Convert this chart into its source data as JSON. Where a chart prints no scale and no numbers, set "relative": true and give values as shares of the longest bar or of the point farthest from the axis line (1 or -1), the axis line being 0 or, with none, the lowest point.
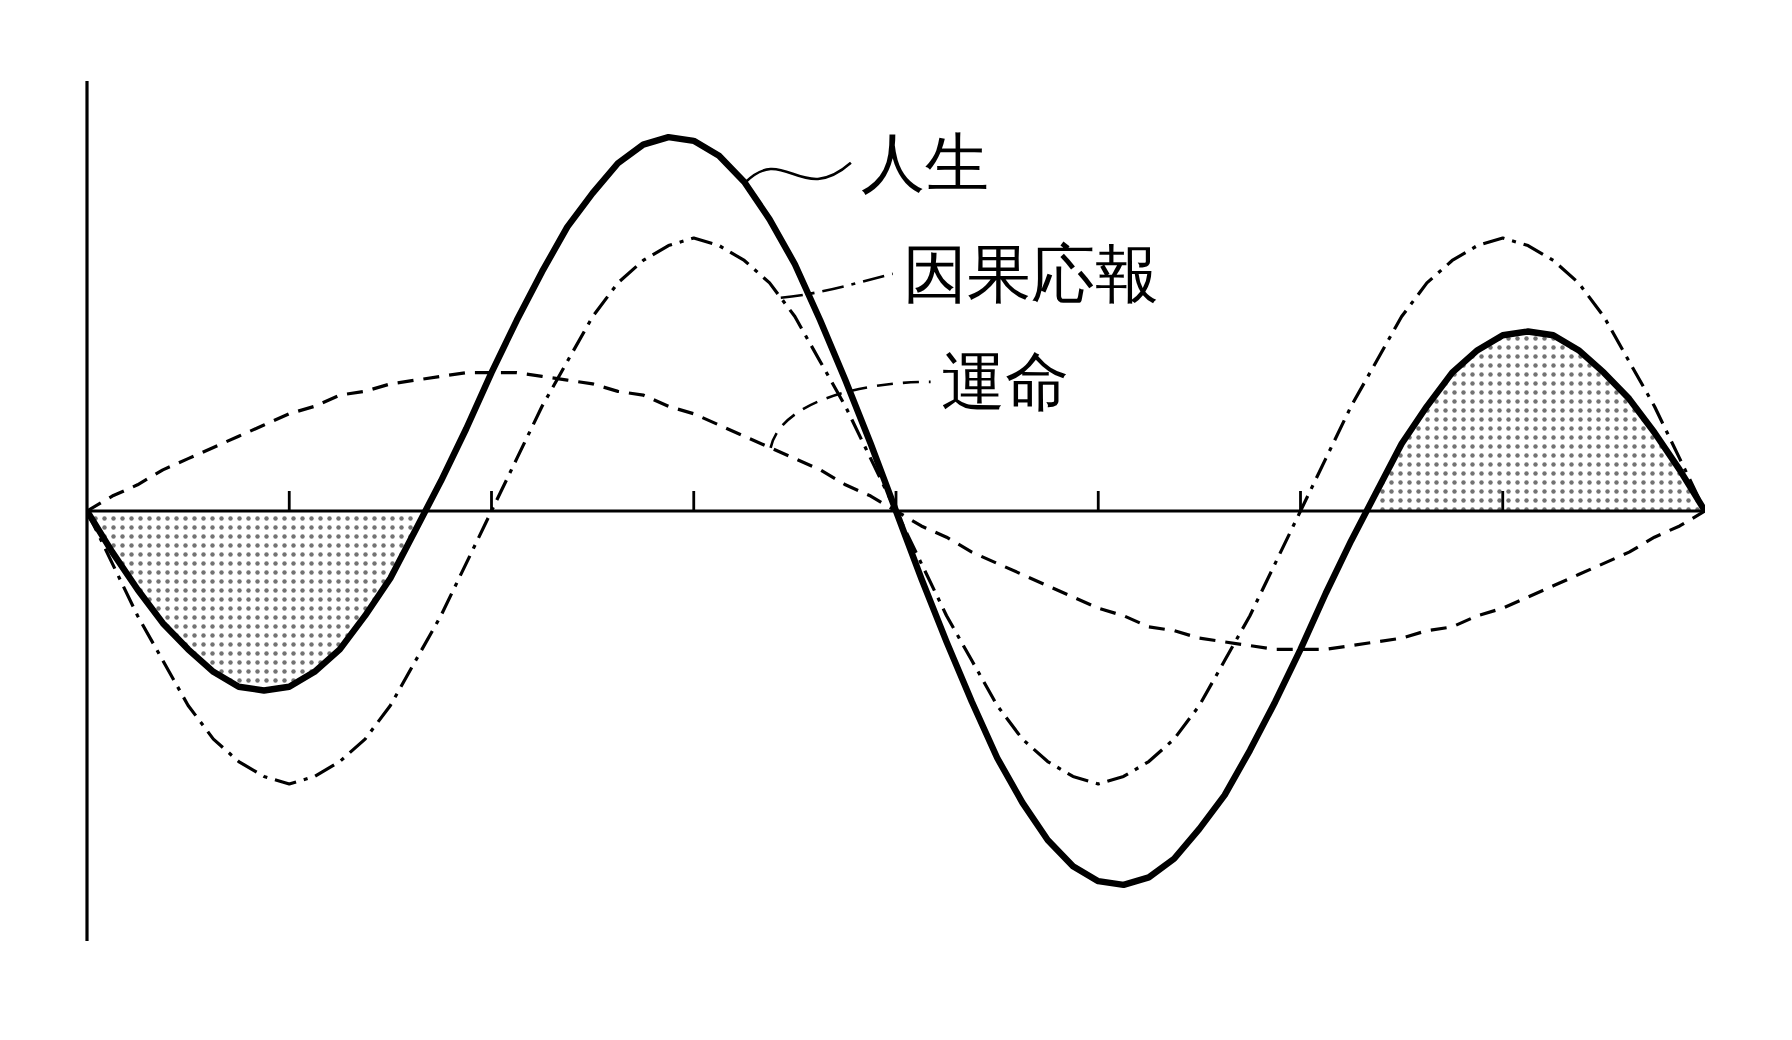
{
  "chart_data": {
    "type": "line",
    "relative": true,
    "categories": [
      null,
      null,
      null,
      null,
      null,
      null,
      null,
      null,
      null,
      null,
      null,
      null,
      null,
      null,
      null,
      null,
      null,
      null,
      null,
      null,
      null,
      null,
      null,
      null,
      null,
      null,
      null,
      null,
      null,
      null,
      null,
      null,
      null,
      null,
      null,
      null,
      null,
      null,
      null,
      null,
      null,
      null,
      null,
      null,
      null,
      null,
      null,
      null,
      null,
      null,
      null,
      null,
      null,
      null,
      null,
      null,
      null,
      null,
      null,
      null,
      null,
      null,
      null,
      null,
      null
    ],
    "grid": false,
    "legend": "top",
    "series": [
      {
        "type": "area",
        "color": "#000000",
        "values": [
          0,
          -0.11,
          -0.21,
          -0.3,
          -0.37,
          -0.43,
          -0.47,
          -0.48,
          -0.47,
          -0.43,
          -0.37,
          -0.28,
          -0.18,
          -0.05,
          null,
          null,
          null,
          null,
          null,
          null,
          null,
          null,
          null,
          null,
          null,
          null,
          null,
          null,
          null,
          null,
          null,
          null,
          null,
          null,
          null,
          null,
          null,
          null,
          null,
          null,
          null,
          null,
          null,
          null,
          null,
          null,
          null,
          null,
          null,
          null,
          null,
          null,
          null,
          null,
          null,
          null,
          null,
          null,
          null,
          null,
          null,
          null,
          null,
          null,
          null
        ]
      },
      {
        "type": "area",
        "color": "#000000",
        "values": [
          null,
          null,
          null,
          null,
          null,
          null,
          null,
          null,
          null,
          null,
          null,
          null,
          null,
          null,
          null,
          null,
          null,
          null,
          null,
          null,
          null,
          null,
          null,
          null,
          null,
          null,
          null,
          null,
          null,
          null,
          null,
          null,
          null,
          null,
          null,
          null,
          null,
          null,
          null,
          null,
          null,
          null,
          null,
          null,
          null,
          null,
          null,
          null,
          null,
          null,
          null,
          0.05,
          0.18,
          0.28,
          0.37,
          0.43,
          0.47,
          0.48,
          0.47,
          0.43,
          0.37,
          0.3,
          0.21,
          0.11,
          0
        ]
      },
      {
        "name": "人生",
        "color": "#000000",
        "line_style": "solid",
        "values": [
          0,
          -0.11,
          -0.21,
          -0.3,
          -0.37,
          -0.43,
          -0.47,
          -0.48,
          -0.47,
          -0.43,
          -0.37,
          -0.28,
          -0.18,
          -0.05,
          0.08,
          0.22,
          0.37,
          0.51,
          0.64,
          0.76,
          0.85,
          0.93,
          0.98,
          1.0,
          0.99,
          0.95,
          0.88,
          0.78,
          0.66,
          0.51,
          0.35,
          0.18,
          0,
          -0.18,
          -0.35,
          -0.51,
          -0.66,
          -0.78,
          -0.88,
          -0.95,
          -0.99,
          -1.0,
          -0.98,
          -0.93,
          -0.85,
          -0.76,
          -0.64,
          -0.51,
          -0.37,
          -0.22,
          -0.08,
          0.05,
          0.18,
          0.28,
          0.37,
          0.43,
          0.47,
          0.48,
          0.47,
          0.43,
          0.37,
          0.3,
          0.21,
          0.11,
          0
        ]
      },
      {
        "name": "因果応報",
        "color": "#000000",
        "line_style": "dashdot",
        "values": [
          0,
          -0.14,
          -0.28,
          -0.4,
          -0.52,
          -0.61,
          -0.67,
          -0.71,
          -0.73,
          -0.71,
          -0.67,
          -0.61,
          -0.52,
          -0.4,
          -0.28,
          -0.14,
          0,
          0.14,
          0.28,
          0.4,
          0.52,
          0.61,
          0.67,
          0.71,
          0.73,
          0.71,
          0.67,
          0.61,
          0.52,
          0.4,
          0.28,
          0.14,
          0,
          -0.14,
          -0.28,
          -0.4,
          -0.52,
          -0.61,
          -0.67,
          -0.71,
          -0.73,
          -0.71,
          -0.67,
          -0.61,
          -0.52,
          -0.4,
          -0.28,
          -0.14,
          0,
          0.14,
          0.28,
          0.4,
          0.52,
          0.61,
          0.67,
          0.71,
          0.73,
          0.71,
          0.67,
          0.61,
          0.52,
          0.4,
          0.28,
          0.14,
          0
        ]
      },
      {
        "name": "運命",
        "color": "#000000",
        "line_style": "dashed",
        "values": [
          0,
          0.04,
          0.07,
          0.11,
          0.14,
          0.17,
          0.2,
          0.23,
          0.26,
          0.28,
          0.31,
          0.32,
          0.34,
          0.35,
          0.36,
          0.37,
          0.37,
          0.37,
          0.36,
          0.35,
          0.34,
          0.32,
          0.31,
          0.28,
          0.26,
          0.23,
          0.2,
          0.17,
          0.14,
          0.11,
          0.07,
          0.04,
          0,
          -0.04,
          -0.07,
          -0.11,
          -0.14,
          -0.17,
          -0.2,
          -0.23,
          -0.26,
          -0.28,
          -0.31,
          -0.32,
          -0.34,
          -0.35,
          -0.36,
          -0.37,
          -0.37,
          -0.37,
          -0.36,
          -0.35,
          -0.34,
          -0.32,
          -0.31,
          -0.28,
          -0.26,
          -0.23,
          -0.2,
          -0.17,
          -0.14,
          -0.11,
          -0.07,
          -0.04,
          0
        ]
      }
    ]
  }
}
